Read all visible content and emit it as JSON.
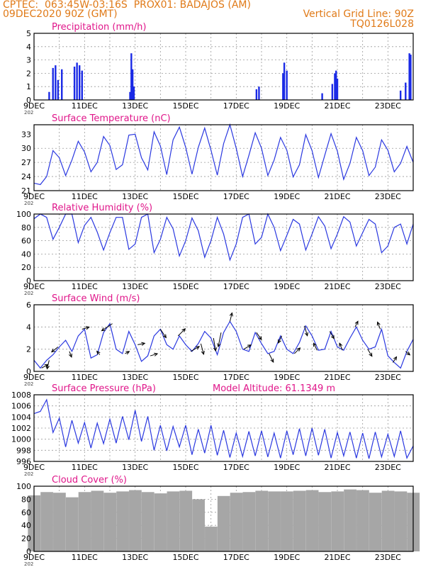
{
  "header": {
    "line1_left": "CPTEC:  063:45W-03:16S  PROX01: BADAJOS (AM)",
    "line2_left": "09DEC2020 90Z (GMT)",
    "line2_right": "Vertical Grid Line: 90Z",
    "line3_right": "TQ0126L028"
  },
  "colors": {
    "header": "#e07a18",
    "title": "#e0168a",
    "line": "#2a38e0",
    "bar": "#1a2ae6",
    "cloud": "#a6a6a6",
    "grid": "#9a9a9a",
    "axis": "#000000",
    "arrow": "#000000"
  },
  "x_axis": {
    "tick_labels": [
      "9DEC",
      "11DEC",
      "13DEC",
      "15DEC",
      "17DEC",
      "19DEC",
      "21DEC",
      "23DEC"
    ],
    "start_day": 9,
    "end_day": 24,
    "year_fragment": "202"
  },
  "panels": [
    {
      "id": "precip",
      "title": "Precipitation (mm/h)",
      "y_ticks": [
        "0",
        "1",
        "2",
        "3",
        "4",
        "5"
      ]
    },
    {
      "id": "temp",
      "title": "Surface Temperature (nC)",
      "y_ticks": [
        "21",
        "24",
        "27",
        "30",
        "33"
      ]
    },
    {
      "id": "rh",
      "title": "Relative Humidity (%)",
      "y_ticks": [
        "0",
        "20",
        "40",
        "60",
        "80",
        "100"
      ]
    },
    {
      "id": "wind",
      "title": "Surface Wind (m/s)",
      "y_ticks": [
        "0",
        "2",
        "4",
        "6"
      ]
    },
    {
      "id": "pres",
      "title": "Surface Pressure (hPa)",
      "extra_title": "Model Altitude: 61.1349 m",
      "y_ticks": [
        "996",
        "998",
        "1000",
        "1002",
        "1004",
        "1006",
        "1008"
      ]
    },
    {
      "id": "cloud",
      "title": "Cloud Cover (%)",
      "y_ticks": [
        "0",
        "20",
        "40",
        "60",
        "80",
        "100"
      ]
    }
  ],
  "chart_data": [
    {
      "type": "bar",
      "title": "Precipitation (mm/h)",
      "ylim": [
        0,
        5
      ],
      "x": [
        9.6,
        9.75,
        9.85,
        9.95,
        10.1,
        10.6,
        10.7,
        10.8,
        10.9,
        12.8,
        12.85,
        12.9,
        12.95,
        17.8,
        17.9,
        18.85,
        18.9,
        19.0,
        20.4,
        20.8,
        20.9,
        20.95,
        21.0,
        23.5,
        23.7,
        23.85,
        23.9
      ],
      "values": [
        0.6,
        2.4,
        2.6,
        1.5,
        2.3,
        2.5,
        2.8,
        2.6,
        2.2,
        0.6,
        3.5,
        2.3,
        1.0,
        0.8,
        1.0,
        2.0,
        2.8,
        2.2,
        0.5,
        1.2,
        2.0,
        2.2,
        1.6,
        0.7,
        1.3,
        3.5,
        3.4
      ]
    },
    {
      "type": "line",
      "title": "Surface Temperature (nC)",
      "ylim": [
        21,
        35
      ],
      "x": [
        9.0,
        9.25,
        9.5,
        9.75,
        10.0,
        10.25,
        10.5,
        10.75,
        11.0,
        11.25,
        11.5,
        11.75,
        12.0,
        12.25,
        12.5,
        12.75,
        13.0,
        13.25,
        13.5,
        13.75,
        14.0,
        14.25,
        14.5,
        14.75,
        15.0,
        15.25,
        15.5,
        15.75,
        16.0,
        16.25,
        16.5,
        16.75,
        17.0,
        17.25,
        17.5,
        17.75,
        18.0,
        18.25,
        18.5,
        18.75,
        19.0,
        19.25,
        19.5,
        19.75,
        20.0,
        20.25,
        20.5,
        20.75,
        21.0,
        21.25,
        21.5,
        21.75,
        22.0,
        22.25,
        22.5,
        22.75,
        23.0,
        23.25,
        23.5,
        23.75,
        24.0
      ],
      "values": [
        22.6,
        22.3,
        24.0,
        29.5,
        28.0,
        24.2,
        27.5,
        31.5,
        29.2,
        25.0,
        27.0,
        32.5,
        30.6,
        25.5,
        26.5,
        32.8,
        33.0,
        28.0,
        25.4,
        33.5,
        30.5,
        24.4,
        31.8,
        34.5,
        30.2,
        24.5,
        30.2,
        34.3,
        29.6,
        24.3,
        31.0,
        35.0,
        30.0,
        24.0,
        28.5,
        33.3,
        30.0,
        24.2,
        27.5,
        32.3,
        29.6,
        23.9,
        26.5,
        32.9,
        29.5,
        23.8,
        28.5,
        33.1,
        29.4,
        23.4,
        26.8,
        32.3,
        29.5,
        24.2,
        26.0,
        31.8,
        29.6,
        25.0,
        26.8,
        30.4,
        27.0
      ]
    },
    {
      "type": "line",
      "title": "Relative Humidity (%)",
      "ylim": [
        0,
        100
      ],
      "x": [
        9.0,
        9.25,
        9.5,
        9.75,
        10.0,
        10.25,
        10.5,
        10.75,
        11.0,
        11.25,
        11.5,
        11.75,
        12.0,
        12.25,
        12.5,
        12.75,
        13.0,
        13.25,
        13.5,
        13.75,
        14.0,
        14.25,
        14.5,
        14.75,
        15.0,
        15.25,
        15.5,
        15.75,
        16.0,
        16.25,
        16.5,
        16.75,
        17.0,
        17.25,
        17.5,
        17.75,
        18.0,
        18.25,
        18.5,
        18.75,
        19.0,
        19.25,
        19.5,
        19.75,
        20.0,
        20.25,
        20.5,
        20.75,
        21.0,
        21.25,
        21.5,
        21.75,
        22.0,
        22.25,
        22.5,
        22.75,
        23.0,
        23.25,
        23.5,
        23.75,
        24.0
      ],
      "values": [
        93,
        100,
        95,
        62,
        80,
        100,
        100,
        57,
        83,
        95,
        73,
        46,
        72,
        95,
        95,
        47,
        55,
        95,
        100,
        42,
        62,
        95,
        78,
        37,
        60,
        94,
        75,
        35,
        60,
        95,
        70,
        31,
        55,
        95,
        100,
        55,
        65,
        100,
        80,
        45,
        68,
        92,
        85,
        46,
        70,
        96,
        82,
        48,
        70,
        96,
        88,
        52,
        72,
        92,
        85,
        42,
        52,
        80,
        85,
        55,
        85
      ]
    },
    {
      "type": "line",
      "title": "Surface Wind (m/s)",
      "ylim": [
        0,
        6
      ],
      "x": [
        9.0,
        9.25,
        9.5,
        9.75,
        10.0,
        10.25,
        10.5,
        10.75,
        11.0,
        11.25,
        11.5,
        11.75,
        12.0,
        12.25,
        12.5,
        12.75,
        13.0,
        13.25,
        13.5,
        13.75,
        14.0,
        14.25,
        14.5,
        14.75,
        15.0,
        15.25,
        15.5,
        15.75,
        16.0,
        16.25,
        16.5,
        16.75,
        17.0,
        17.25,
        17.5,
        17.75,
        18.0,
        18.25,
        18.5,
        18.75,
        19.0,
        19.25,
        19.5,
        19.75,
        20.0,
        20.25,
        20.5,
        20.75,
        21.0,
        21.25,
        21.5,
        21.75,
        22.0,
        22.25,
        22.5,
        22.75,
        23.0,
        23.25,
        23.5,
        23.75,
        24.0
      ],
      "values": [
        1.0,
        0.3,
        1.0,
        1.5,
        2.2,
        2.8,
        1.8,
        3.2,
        3.8,
        1.2,
        1.5,
        3.5,
        4.3,
        2.0,
        1.6,
        3.6,
        2.4,
        0.9,
        1.4,
        3.2,
        3.8,
        2.4,
        2.0,
        3.2,
        2.4,
        1.8,
        2.5,
        3.6,
        3.0,
        1.5,
        3.5,
        4.5,
        3.6,
        2.0,
        1.8,
        3.5,
        2.5,
        1.6,
        1.8,
        3.2,
        2.0,
        1.6,
        2.6,
        4.1,
        3.2,
        1.9,
        2.0,
        3.6,
        2.2,
        1.9,
        3.0,
        4.0,
        2.8,
        2.0,
        2.2,
        3.8,
        1.4,
        0.8,
        0.3,
        1.8,
        2.9
      ]
    },
    {
      "type": "line",
      "title": "Surface Pressure (hPa)",
      "ylim": [
        996,
        1008
      ],
      "x": [
        9.0,
        9.25,
        9.5,
        9.75,
        10.0,
        10.25,
        10.5,
        10.75,
        11.0,
        11.25,
        11.5,
        11.75,
        12.0,
        12.25,
        12.5,
        12.75,
        13.0,
        13.25,
        13.5,
        13.75,
        14.0,
        14.25,
        14.5,
        14.75,
        15.0,
        15.25,
        15.5,
        15.75,
        16.0,
        16.25,
        16.5,
        16.75,
        17.0,
        17.25,
        17.5,
        17.75,
        18.0,
        18.25,
        18.5,
        18.75,
        19.0,
        19.25,
        19.5,
        19.75,
        20.0,
        20.25,
        20.5,
        20.75,
        21.0,
        21.25,
        21.5,
        21.75,
        22.0,
        22.25,
        22.5,
        22.75,
        23.0,
        23.25,
        23.5,
        23.75,
        24.0
      ],
      "values": [
        1004.6,
        1005.0,
        1007.1,
        1001.2,
        1003.8,
        998.6,
        1003.4,
        999.3,
        1003.0,
        998.4,
        1002.9,
        999.2,
        1003.6,
        999.3,
        1004.1,
        999.9,
        1005.2,
        999.6,
        1004.1,
        998.0,
        1002.5,
        997.9,
        1002.3,
        998.6,
        1002.5,
        997.2,
        1001.8,
        997.5,
        1002.5,
        997.1,
        1001.6,
        996.7,
        1001.1,
        996.9,
        1001.4,
        997.0,
        1001.5,
        996.8,
        1001.1,
        996.6,
        1001.5,
        997.2,
        1001.9,
        997.0,
        1002.0,
        997.1,
        1001.8,
        996.6,
        1001.2,
        997.0,
        1001.3,
        996.6,
        1001.1,
        996.5,
        1001.3,
        996.8,
        1000.9,
        996.9,
        1001.5,
        996.6,
        998.8
      ]
    },
    {
      "type": "bar",
      "title": "Cloud Cover (%)",
      "ylim": [
        0,
        100
      ],
      "x": [
        9.0,
        9.5,
        10.0,
        10.5,
        11.0,
        11.5,
        12.0,
        12.5,
        13.0,
        13.5,
        14.0,
        14.5,
        15.0,
        15.5,
        16.0,
        16.5,
        17.0,
        17.5,
        18.0,
        18.5,
        19.0,
        19.5,
        20.0,
        20.5,
        21.0,
        21.5,
        22.0,
        22.5,
        23.0,
        23.5,
        24.0
      ],
      "values": [
        86,
        91,
        90,
        83,
        91,
        93,
        90,
        92,
        94,
        91,
        89,
        92,
        93,
        80,
        38,
        85,
        90,
        91,
        93,
        92,
        92,
        93,
        94,
        91,
        92,
        95,
        94,
        90,
        93,
        92,
        90
      ]
    }
  ],
  "wind_arrows": {
    "note_days": [
      9.3,
      9.6,
      9.95,
      10.4,
      10.9,
      11.6,
      12.1,
      12.6,
      13.1,
      13.6,
      14.0,
      14.7,
      15.2,
      15.6,
      16.1,
      16.4,
      16.75,
      17.3,
      17.8,
      18.3,
      18.8,
      19.3,
      19.7,
      20.2,
      20.7,
      21.2,
      21.7,
      22.2,
      22.7,
      23.2,
      23.7
    ],
    "u": [
      0.9,
      -0.3,
      -0.9,
      0.3,
      1.0,
      -0.4,
      -1.5,
      0.6,
      1.0,
      1.0,
      0.8,
      1.0,
      1.2,
      0.4,
      0.3,
      -0.4,
      0.3,
      1.0,
      0.7,
      0.6,
      -0.5,
      0.8,
      0.4,
      -0.5,
      0.6,
      -0.4,
      0.4,
      0.6,
      -0.4,
      0.5,
      0.6
    ],
    "v": [
      0.5,
      -1.2,
      -0.7,
      -0.8,
      0.3,
      0.5,
      -1.0,
      0.3,
      0.2,
      0.3,
      -1.2,
      1.0,
      0.7,
      -1.5,
      -1.8,
      -2.0,
      1.2,
      0.6,
      -1.0,
      -1.2,
      -1.0,
      0.8,
      -1.4,
      1.0,
      -1.0,
      1.0,
      0.8,
      -1.0,
      1.0,
      0.8,
      -0.5
    ]
  }
}
